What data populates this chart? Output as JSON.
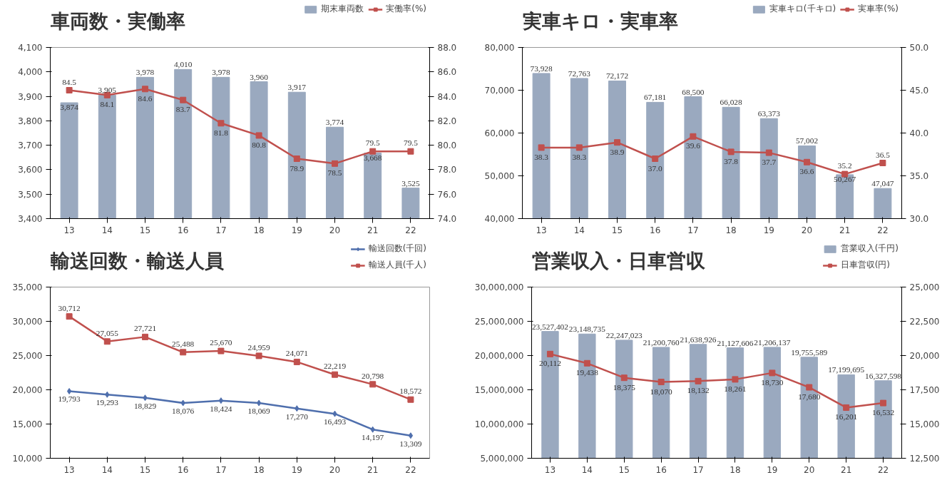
{
  "chart_data": [
    {
      "type": "bar",
      "title": "車両数・実働率",
      "categories": [
        "13",
        "14",
        "15",
        "16",
        "17",
        "18",
        "19",
        "20",
        "21",
        "22"
      ],
      "legend": "top right",
      "grid": false,
      "ylim": [
        3400,
        4100
      ],
      "yticks": [
        {
          "value": 3400,
          "label": "3,400"
        },
        {
          "value": 3500,
          "label": "3,500"
        },
        {
          "value": 3600,
          "label": "3,600"
        },
        {
          "value": 3700,
          "label": "3,700"
        },
        {
          "value": 3800,
          "label": "3,800"
        },
        {
          "value": 3900,
          "label": "3,900"
        },
        {
          "value": 4000,
          "label": "4,000"
        },
        {
          "value": 4100,
          "label": "4,100"
        }
      ],
      "y2lim": [
        74,
        88
      ],
      "y2ticks": [
        {
          "value": 74,
          "label": "74.0"
        },
        {
          "value": 76,
          "label": "76.0"
        },
        {
          "value": 78,
          "label": "78.0"
        },
        {
          "value": 80,
          "label": "80.0"
        },
        {
          "value": 82,
          "label": "82.0"
        },
        {
          "value": 84,
          "label": "84.0"
        },
        {
          "value": 86,
          "label": "86.0"
        },
        {
          "value": 88,
          "label": "88.0"
        }
      ],
      "series": [
        {
          "name": "期末車両数",
          "color": "#9aa9bf",
          "values": [
            3874,
            3905,
            3978,
            4010,
            3978,
            3960,
            3917,
            3774,
            3668,
            3525
          ],
          "value_labels": [
            "3,874",
            "3,905",
            "3,978",
            "4,010",
            "3,978",
            "3,960",
            "3,917",
            "3,774",
            "3,668",
            "3,525"
          ]
        },
        {
          "name": "実働率(%)",
          "type": "line",
          "axis": "y2",
          "marker": "square",
          "color": "#c0504d",
          "values": [
            84.5,
            84.1,
            84.6,
            83.7,
            81.8,
            80.8,
            78.9,
            78.5,
            79.5,
            79.5
          ],
          "value_labels": [
            "84.5",
            "84.1",
            "84.6",
            "83.7",
            "81.8",
            "80.8",
            "78.9",
            "78.5",
            "79.5",
            "79.5"
          ]
        }
      ]
    },
    {
      "type": "bar",
      "title": "実車キロ・実車率",
      "categories": [
        "13",
        "14",
        "15",
        "16",
        "17",
        "18",
        "19",
        "20",
        "21",
        "22"
      ],
      "legend": "top right",
      "grid": false,
      "ylim": [
        40000,
        80000
      ],
      "yticks": [
        {
          "value": 40000,
          "label": "40,000"
        },
        {
          "value": 50000,
          "label": "50,000"
        },
        {
          "value": 60000,
          "label": "60,000"
        },
        {
          "value": 70000,
          "label": "70,000"
        },
        {
          "value": 80000,
          "label": "80,000"
        }
      ],
      "y2lim": [
        30,
        50
      ],
      "y2ticks": [
        {
          "value": 30,
          "label": "30.0"
        },
        {
          "value": 35,
          "label": "35.0"
        },
        {
          "value": 40,
          "label": "40.0"
        },
        {
          "value": 45,
          "label": "45.0"
        },
        {
          "value": 50,
          "label": "50.0"
        }
      ],
      "series": [
        {
          "name": "実車キロ(千キロ)",
          "color": "#9aa9bf",
          "values": [
            73928,
            72763,
            72172,
            67181,
            68500,
            66028,
            63373,
            57002,
            50267,
            47047
          ],
          "value_labels": [
            "73,928",
            "72,763",
            "72,172",
            "67,181",
            "68,500",
            "66,028",
            "63,373",
            "57,002",
            "50,267",
            "47,047"
          ]
        },
        {
          "name": "実車率(%)",
          "type": "line",
          "axis": "y2",
          "marker": "square",
          "color": "#c0504d",
          "values": [
            38.3,
            38.3,
            38.9,
            37.0,
            39.6,
            37.8,
            37.7,
            36.6,
            35.2,
            36.5
          ],
          "value_labels": [
            "38.3",
            "38.3",
            "38.9",
            "37.0",
            "39.6",
            "37.8",
            "37.7",
            "36.6",
            "35.2",
            "36.5"
          ]
        }
      ]
    },
    {
      "type": "line",
      "title": "輸送回数・輸送人員",
      "categories": [
        "13",
        "14",
        "15",
        "16",
        "17",
        "18",
        "19",
        "20",
        "21",
        "22"
      ],
      "legend": "top right",
      "grid": false,
      "ylim": [
        10000,
        35000
      ],
      "yticks": [
        {
          "value": 10000,
          "label": "10,000"
        },
        {
          "value": 15000,
          "label": "15,000"
        },
        {
          "value": 20000,
          "label": "20,000"
        },
        {
          "value": 25000,
          "label": "25,000"
        },
        {
          "value": 30000,
          "label": "30,000"
        },
        {
          "value": 35000,
          "label": "35,000"
        }
      ],
      "series": [
        {
          "name": "輸送回数(千回)",
          "marker": "diamond",
          "color": "#4f6fad",
          "values": [
            19793,
            19293,
            18829,
            18076,
            18424,
            18069,
            17270,
            16493,
            14197,
            13309
          ],
          "value_labels": [
            "19,793",
            "19,293",
            "18,829",
            "18,076",
            "18,424",
            "18,069",
            "17,270",
            "16,493",
            "14,197",
            "13,309"
          ]
        },
        {
          "name": "輸送人員(千人)",
          "marker": "square",
          "color": "#c0504d",
          "values": [
            30712,
            27055,
            27721,
            25488,
            25670,
            24959,
            24071,
            22219,
            20798,
            18572
          ],
          "value_labels": [
            "30,712",
            "27,055",
            "27,721",
            "25,488",
            "25,670",
            "24,959",
            "24,071",
            "22,219",
            "20,798",
            "18,572"
          ]
        }
      ]
    },
    {
      "type": "bar",
      "title": "営業収入・日車営収",
      "categories": [
        "13",
        "14",
        "15",
        "16",
        "17",
        "18",
        "19",
        "20",
        "21",
        "22"
      ],
      "legend": "top right",
      "grid": false,
      "ylim": [
        5000000,
        30000000
      ],
      "yticks": [
        {
          "value": 5000000,
          "label": "5,000,000"
        },
        {
          "value": 10000000,
          "label": "10,000,000"
        },
        {
          "value": 15000000,
          "label": "15,000,000"
        },
        {
          "value": 20000000,
          "label": "20,000,000"
        },
        {
          "value": 25000000,
          "label": "25,000,000"
        },
        {
          "value": 30000000,
          "label": "30,000,000"
        }
      ],
      "y2lim": [
        12500,
        25000
      ],
      "y2ticks": [
        {
          "value": 12500,
          "label": "12,500"
        },
        {
          "value": 15000,
          "label": "15,000"
        },
        {
          "value": 17500,
          "label": "17,500"
        },
        {
          "value": 20000,
          "label": "20,000"
        },
        {
          "value": 22500,
          "label": "22,500"
        },
        {
          "value": 25000,
          "label": "25,000"
        }
      ],
      "series": [
        {
          "name": "営業収入(千円)",
          "color": "#9aa9bf",
          "values": [
            23527402,
            23148735,
            22247023,
            21200760,
            21638926,
            21127606,
            21206137,
            19755589,
            17199695,
            16327598
          ],
          "value_labels": [
            "23,527,402",
            "23,148,735",
            "22,247,023",
            "21,200,760",
            "21,638,926",
            "21,127,606",
            "21,206,137",
            "19,755,589",
            "17,199,695",
            "16,327,598"
          ]
        },
        {
          "name": "日車営収(円)",
          "type": "line",
          "axis": "y2",
          "marker": "square",
          "color": "#c0504d",
          "values": [
            20112,
            19438,
            18375,
            18070,
            18132,
            18261,
            18730,
            17680,
            16201,
            16532
          ],
          "value_labels": [
            "20,112",
            "19,438",
            "18,375",
            "18,070",
            "18,132",
            "18,261",
            "18,730",
            "17,680",
            "16,201",
            "16,532"
          ]
        }
      ]
    }
  ]
}
